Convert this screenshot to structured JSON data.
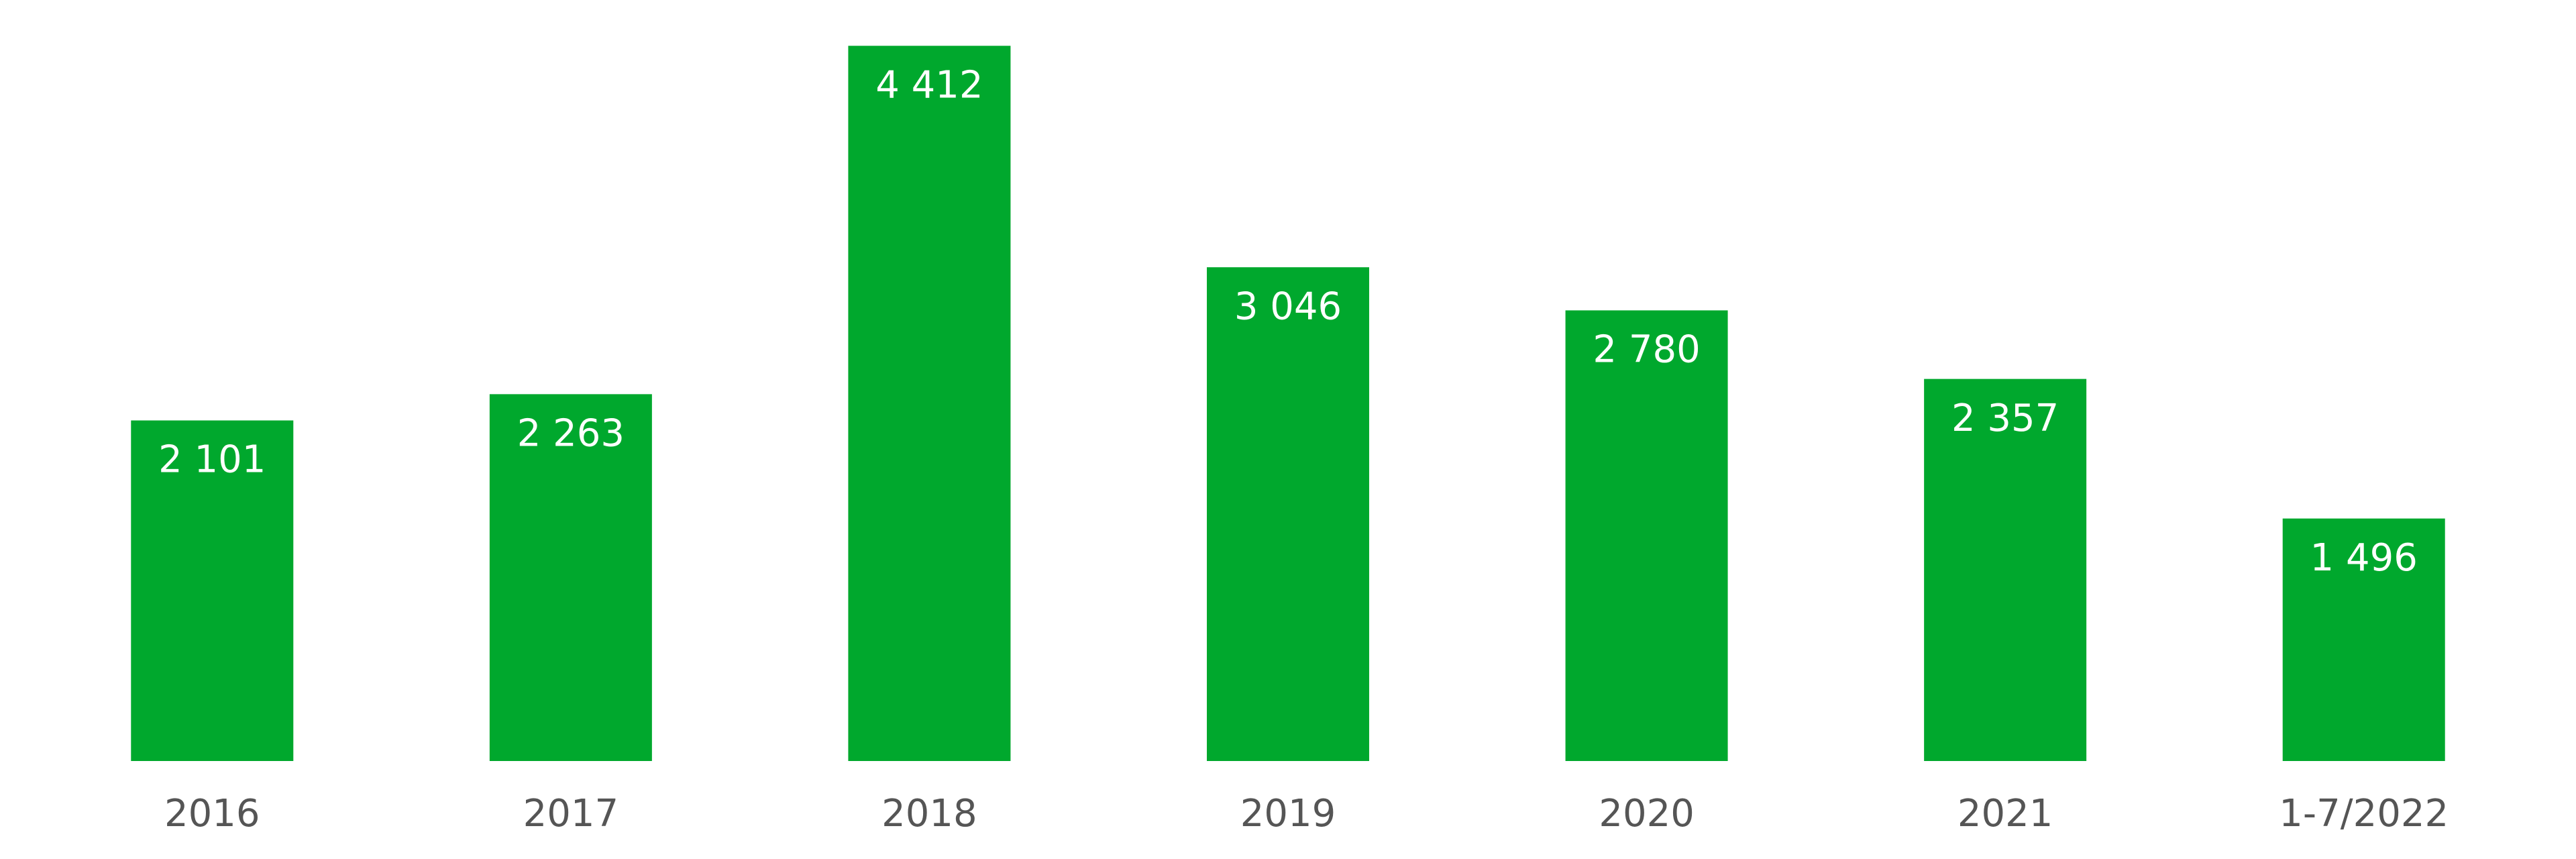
{
  "chart_data": {
    "type": "bar",
    "categories": [
      "2016",
      "2017",
      "2018",
      "2019",
      "2020",
      "2021",
      "1-7/2022"
    ],
    "values": [
      2101,
      2263,
      4412,
      3046,
      2780,
      2357,
      1496
    ],
    "value_labels": [
      "2 101",
      "2 263",
      "4 412",
      "3 046",
      "2 780",
      "2 357",
      "1 496"
    ],
    "color": "#00a82d",
    "ylim": [
      0,
      4500
    ]
  }
}
